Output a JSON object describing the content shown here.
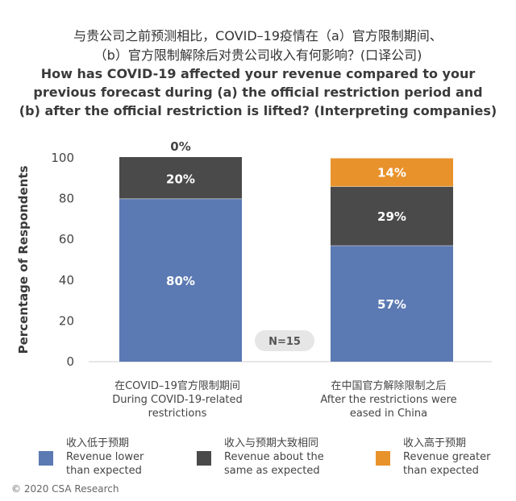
{
  "title_zh": [
    "与贵公司之前预测相比，COVID–19疫情在（a）官方限制期间、",
    "（b）官方限制解除后对贵公司收入有何影响？(口译公司)"
  ],
  "title_en": [
    "How has COVID-19 affected your revenue compared to your",
    "previous forecast during (a) the official restriction period and",
    "(b) after the official restriction is lifted? (Interpreting companies)"
  ],
  "chart_data": {
    "type": "bar",
    "stacked": true,
    "categories": [
      [
        "在COVID–19官方限制期间",
        "During COVID-19-related",
        "restrictions"
      ],
      [
        "在中国官方解除限制之后",
        "After the restrictions were",
        "eased in China"
      ]
    ],
    "series": [
      {
        "name": [
          "收入低于预期",
          "Revenue lower",
          "than expected"
        ],
        "values": [
          80,
          57
        ],
        "labels": [
          "80%",
          "57%"
        ],
        "color": "#5b79b2"
      },
      {
        "name": [
          "收入与预期大致相同",
          "Revenue about the",
          "same as expected"
        ],
        "values": [
          20,
          29
        ],
        "labels": [
          "20%",
          "29%"
        ],
        "color": "#4a4a4a"
      },
      {
        "name": [
          "收入高于预期",
          "Revenue greater",
          "than expected"
        ],
        "values": [
          0,
          14
        ],
        "labels": [
          "0%",
          "14%"
        ],
        "color": "#e8922c"
      }
    ],
    "ylabel": "Percentage of Respondents",
    "ylim": [
      0,
      100
    ],
    "yticks": [
      0,
      20,
      40,
      60,
      80,
      100
    ],
    "grid": false,
    "legend": "bottom",
    "annotation": "N=15"
  },
  "copyright": "© 2020 CSA Research"
}
